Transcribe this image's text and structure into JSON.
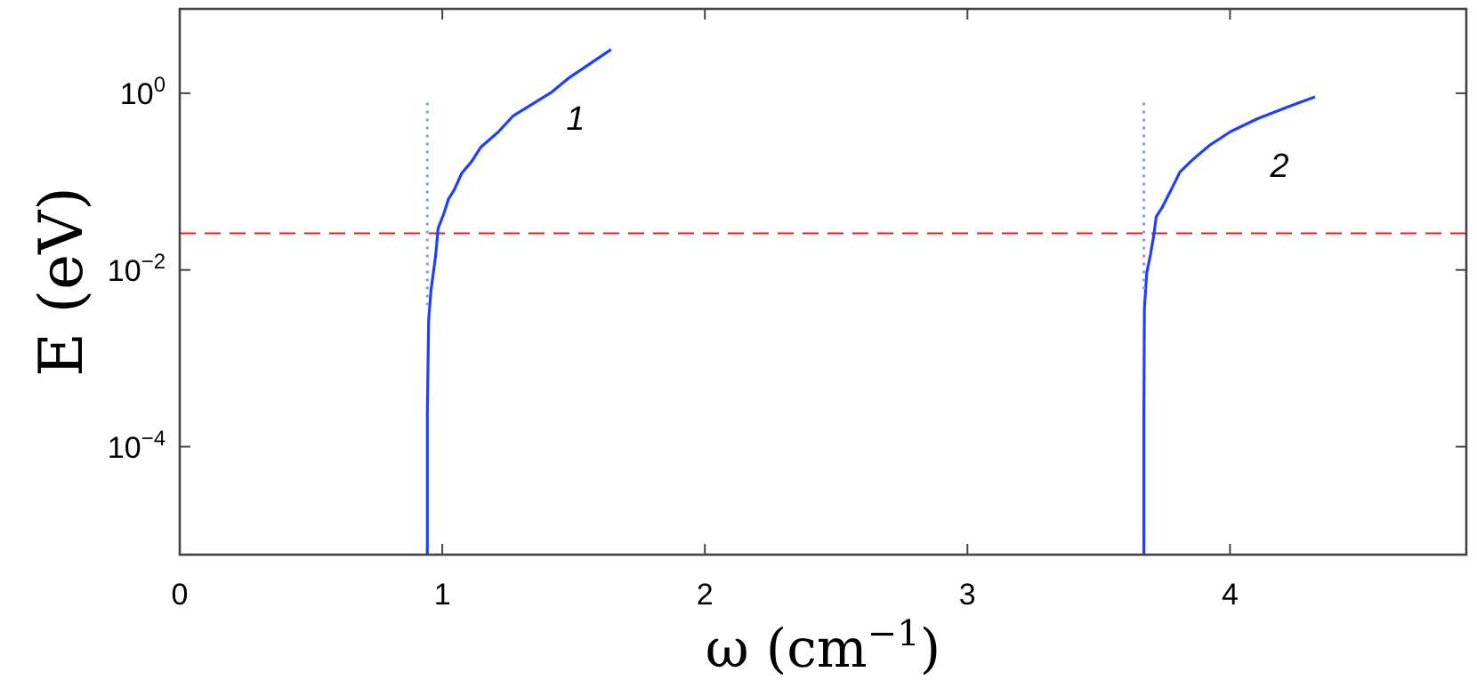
{
  "chart_data": {
    "type": "line",
    "xlabel": "ω (cm$^{−1}$)",
    "ylabel": "E (eV)",
    "log": "y",
    "xlim": [
      0,
      4.9
    ],
    "ylim": [
      6e-06,
      9
    ],
    "xticks": [
      0,
      1,
      2,
      3,
      4
    ],
    "yticks": [
      {
        "value": 1,
        "label": "10$^{0}$"
      },
      {
        "value": 0.01,
        "label": "10$^{−2}$"
      },
      {
        "value": 0.0001,
        "label": "10$^{−4}$"
      }
    ],
    "series": [
      {
        "name": "1",
        "color": "#1f3fff",
        "x": [
          0.943,
          0.943,
          0.948,
          0.957,
          0.975,
          0.984,
          1.006,
          1.024,
          1.045,
          1.074,
          1.112,
          1.146,
          1.214,
          1.27,
          1.417,
          1.485,
          1.643
        ],
        "values": [
          6e-06,
          0.00023,
          0.0027,
          0.0059,
          0.0148,
          0.0295,
          0.0435,
          0.064,
          0.08,
          0.124,
          0.169,
          0.244,
          0.366,
          0.555,
          1.03,
          1.51,
          3.13
        ]
      },
      {
        "name": "2",
        "color": "#1f3fff",
        "x": [
          3.672,
          3.672,
          3.674,
          3.683,
          3.697,
          3.71,
          3.719,
          3.741,
          3.775,
          3.809,
          3.855,
          3.922,
          4.001,
          4.103,
          4.238,
          4.324
        ],
        "values": [
          6e-06,
          0.00023,
          0.0037,
          0.0093,
          0.0148,
          0.025,
          0.04,
          0.0506,
          0.08,
          0.128,
          0.174,
          0.257,
          0.366,
          0.513,
          0.733,
          0.91
        ]
      },
      {
        "color": "#7f9fff",
        "line_style": "dotted",
        "x": [
          0.943,
          0.943
        ],
        "values": [
          0.78,
          0.0038
        ]
      },
      {
        "color": "#7f9fff",
        "line_style": "dotted",
        "x": [
          3.672,
          3.672
        ],
        "values": [
          0.78,
          0.006
        ]
      }
    ],
    "ref_lines": [
      {
        "axis": "y",
        "value": 0.026,
        "color": "#e02020",
        "line_style": "dashed"
      }
    ]
  }
}
